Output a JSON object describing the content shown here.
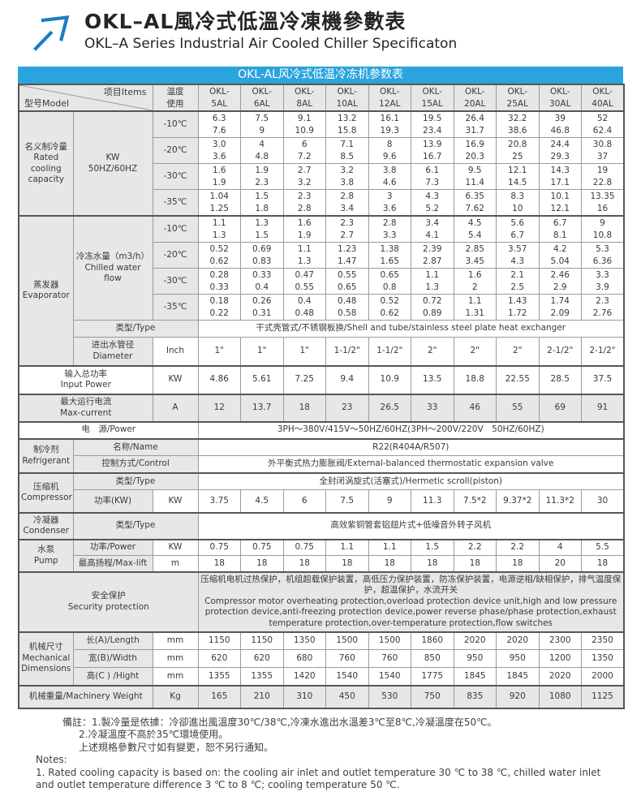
{
  "colors": {
    "accent": "#2aa4dd",
    "logo_blue": "#1a7ec0",
    "cell_gray": "#e7e7e7"
  },
  "header": {
    "logo_icon": "arrow-up-right-icon",
    "title_zh": "OKL–AL風冷式低溫冷凍機參數表",
    "title_en": "OKL–A Series Industrial Air Cooled Chiller Specificaton"
  },
  "banner": {
    "title": "OKL-AL风冷式低温冷冻机参数表"
  },
  "table": {
    "corner": {
      "model": "型号Model",
      "items": "项目Items"
    },
    "temp_label": [
      "温度",
      "使用"
    ],
    "models": [
      "OKL-5AL",
      "OKL-6AL",
      "OKL-8AL",
      "OKL-10AL",
      "OKL-12AL",
      "OKL-15AL",
      "OKL-20AL",
      "OKL-25AL",
      "OKL-30AL",
      "OKL-40AL"
    ],
    "rated_cooling": {
      "label": [
        "名义制冷量",
        "Rated cooling capacity"
      ],
      "unit": [
        "KW",
        "50HZ/60HZ"
      ],
      "rows": [
        {
          "temp": "-10℃",
          "hz50": [
            "6.3",
            "7.5",
            "9.1",
            "13.2",
            "16.1",
            "19.5",
            "26.4",
            "32.2",
            "39",
            "52"
          ],
          "hz60": [
            "7.6",
            "9",
            "10.9",
            "15.8",
            "19.3",
            "23.4",
            "31.7",
            "38.6",
            "46.8",
            "62.4"
          ]
        },
        {
          "temp": "-20℃",
          "hz50": [
            "3.0",
            "4",
            "6",
            "7.1",
            "8",
            "13.9",
            "16.9",
            "20.8",
            "24.4",
            "30.8"
          ],
          "hz60": [
            "3.6",
            "4.8",
            "7.2",
            "8.5",
            "9.6",
            "16.7",
            "20.3",
            "25",
            "29.3",
            "37"
          ]
        },
        {
          "temp": "-30℃",
          "hz50": [
            "1.6",
            "1.9",
            "2.7",
            "3.2",
            "3.8",
            "6.1",
            "9.5",
            "12.1",
            "14.3",
            "19"
          ],
          "hz60": [
            "1.9",
            "2.3",
            "3.2",
            "3.8",
            "4.6",
            "7.3",
            "11.4",
            "14.5",
            "17.1",
            "22.8"
          ]
        },
        {
          "temp": "-35℃",
          "hz50": [
            "1.04",
            "1.5",
            "2.3",
            "2.8",
            "3",
            "4.3",
            "6.35",
            "8.3",
            "10.1",
            "13.35"
          ],
          "hz60": [
            "1.25",
            "1.8",
            "2.8",
            "3.4",
            "3.6",
            "5.2",
            "7.62",
            "10",
            "12.1",
            "16"
          ]
        }
      ]
    },
    "evaporator": {
      "label": [
        "蒸发器",
        "Evaporator"
      ],
      "flow_label": [
        "冷冻水量（m3/h）",
        "Chilled water flow"
      ],
      "rows": [
        {
          "temp": "-10℃",
          "hz50": [
            "1.1",
            "1.3",
            "1.6",
            "2.3",
            "2.8",
            "3.4",
            "4.5",
            "5.6",
            "6.7",
            "9"
          ],
          "hz60": [
            "1.3",
            "1.5",
            "1.9",
            "2.7",
            "3.3",
            "4.1",
            "5.4",
            "6.7",
            "8.1",
            "10.8"
          ]
        },
        {
          "temp": "-20℃",
          "hz50": [
            "0.52",
            "0.69",
            "1.1",
            "1.23",
            "1.38",
            "2.39",
            "2.85",
            "3.57",
            "4.2",
            "5.3"
          ],
          "hz60": [
            "0.62",
            "0.83",
            "1.3",
            "1.47",
            "1.65",
            "2.87",
            "3.45",
            "4.3",
            "5.04",
            "6.36"
          ]
        },
        {
          "temp": "-30℃",
          "hz50": [
            "0.28",
            "0.33",
            "0.47",
            "0.55",
            "0.65",
            "1.1",
            "1.6",
            "2.1",
            "2.46",
            "3.3"
          ],
          "hz60": [
            "0.33",
            "0.4",
            "0.55",
            "0.65",
            "0.8",
            "1.3",
            "2",
            "2.5",
            "2.9",
            "3.9"
          ]
        },
        {
          "temp": "-35℃",
          "hz50": [
            "0.18",
            "0.26",
            "0.4",
            "0.48",
            "0.52",
            "0.72",
            "1.1",
            "1.43",
            "1.74",
            "2.3"
          ],
          "hz60": [
            "0.22",
            "0.31",
            "0.48",
            "0.58",
            "0.62",
            "0.89",
            "1.31",
            "1.72",
            "2.09",
            "2.76"
          ]
        }
      ],
      "type_label": "类型/Type",
      "type_value": "干式壳管式/不锈钢板换/Shell and tube/stainless steel plate heat exchanger",
      "diameter_label": [
        "进出水管径",
        "Diameter"
      ],
      "diameter_unit": "Inch",
      "diameter_values": [
        "1\"",
        "1\"",
        "1\"",
        "1-1/2\"",
        "1-1/2\"",
        "2\"",
        "2\"",
        "2\"",
        "2-1/2\"",
        "2-1/2\""
      ]
    },
    "input_power": {
      "label": [
        "输入总功率",
        "Input Power"
      ],
      "unit": "KW",
      "values": [
        "4.86",
        "5.61",
        "7.25",
        "9.4",
        "10.9",
        "13.5",
        "18.8",
        "22.55",
        "28.5",
        "37.5"
      ]
    },
    "max_current": {
      "label": [
        "最大运行电流",
        "Max-current"
      ],
      "unit": "A",
      "values": [
        "12",
        "13.7",
        "18",
        "23",
        "26.5",
        "33",
        "46",
        "55",
        "69",
        "91"
      ]
    },
    "power_supply": {
      "label": "电　源/Power",
      "value": "3PH～380V/415V～50HZ/60HZ(3PH～200V/220V　50HZ/60HZ)"
    },
    "refrigerant": {
      "label": [
        "制冷剂",
        "Refrigerant"
      ],
      "name_label": "名称/Name",
      "name_value": "R22(R404A/R507)",
      "control_label": "控制方式/Control",
      "control_value": "外平衡式热力膨胀阀/External-balanced thermostatic expansion valve"
    },
    "compressor": {
      "label": [
        "压缩机",
        "Compressor"
      ],
      "type_label": "类型/Type",
      "type_value": "全封闭涡旋式(活塞式)/Hermetic scroll(piston)",
      "power_label": "功率(KW)",
      "power_unit": "KW",
      "power_values": [
        "3.75",
        "4.5",
        "6",
        "7.5",
        "9",
        "11.3",
        "7.5*2",
        "9.37*2",
        "11.3*2",
        "30"
      ]
    },
    "condenser": {
      "label": [
        "冷凝器",
        "Condenser"
      ],
      "type_label": "类型/Type",
      "type_value": "高效紫铜管套铝翅片式+低噪音外转子风机"
    },
    "pump": {
      "label": [
        "水泵",
        "Pump"
      ],
      "power_label": "功率/Power",
      "power_unit": "KW",
      "power_values": [
        "0.75",
        "0.75",
        "0.75",
        "1.1",
        "1.1",
        "1.5",
        "2.2",
        "2.2",
        "4",
        "5.5"
      ],
      "lift_label": "最高扬程/Max-lift",
      "lift_unit": "m",
      "lift_values": [
        "18",
        "18",
        "18",
        "18",
        "18",
        "18",
        "18",
        "18",
        "20",
        "18"
      ]
    },
    "security": {
      "label": [
        "安全保护",
        "Security protection"
      ],
      "text_zh": "压缩机电机过热保护，机组超载保护装置，高低压力保护装置，防冻保护装置，电源逆相/缺相保护，排气温度保护，超温保护，水流开关",
      "text_en": " Compressor motor overheating protection,overload protection device unit,high and low pressure protection device,anti-freezing protection device,power reverse phase/phase protection,exhaust temperature protection,over-temperature protection,flow switches"
    },
    "dimensions": {
      "label": [
        "机械尺寸",
        "Mechanical Dimensions"
      ],
      "rows": [
        {
          "label": "长(A)/Length",
          "unit": "mm",
          "values": [
            "1150",
            "1150",
            "1350",
            "1500",
            "1500",
            "1860",
            "2020",
            "2020",
            "2300",
            "2350"
          ]
        },
        {
          "label": "宽(B)/Width",
          "unit": "mm",
          "values": [
            "620",
            "620",
            "680",
            "760",
            "760",
            "850",
            "950",
            "950",
            "1200",
            "1350"
          ]
        },
        {
          "label": "高(C ) /Hight",
          "unit": "mm",
          "values": [
            "1355",
            "1355",
            "1420",
            "1540",
            "1540",
            "1775",
            "1845",
            "1845",
            "2020",
            "2000"
          ]
        }
      ]
    },
    "weight": {
      "label": "机械重量/Machinery Weight",
      "unit": "Kg",
      "values": [
        "165",
        "210",
        "310",
        "450",
        "530",
        "750",
        "835",
        "920",
        "1080",
        "1125"
      ]
    }
  },
  "notes": {
    "zh": [
      "備註：1.製冷量是依據：冷卻進出風溫度30℃/38℃,冷凍水進出水溫差3℃至8℃,冷凝溫度在50℃。",
      "2.冷凝溫度不高於35℃環境使用。",
      "上述規格參數尺寸如有變更，恕不另行通知。"
    ],
    "en": [
      "Notes:",
      "1. Rated cooling capacity is based on: the cooling air inlet and outlet temperature 30 ℃ to 38 ℃, chilled water inlet and outlet temperature difference 3 ℃ to 8 ℃; cooling temperature 50 ℃."
    ]
  }
}
